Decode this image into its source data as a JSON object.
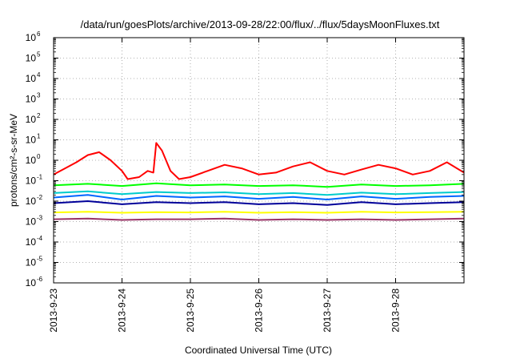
{
  "chart_data": {
    "type": "line",
    "title": "/data/run/goesPlots/archive/2013-09-28/22:00/flux/../flux/5daysMoonFluxes.txt",
    "xlabel": "Coordinated Universal Time (UTC)",
    "ylabel": "protons/cm²-s-sr-MeV",
    "y_scale": "log",
    "ylim_exponents": [
      -6,
      6
    ],
    "y_ticks": [
      {
        "base": "10",
        "exp": "-6"
      },
      {
        "base": "10",
        "exp": "-5"
      },
      {
        "base": "10",
        "exp": "-4"
      },
      {
        "base": "10",
        "exp": "-3"
      },
      {
        "base": "10",
        "exp": "-2"
      },
      {
        "base": "10",
        "exp": "-1"
      },
      {
        "base": "10",
        "exp": "0"
      },
      {
        "base": "10",
        "exp": "1"
      },
      {
        "base": "10",
        "exp": "2"
      },
      {
        "base": "10",
        "exp": "3"
      },
      {
        "base": "10",
        "exp": "4"
      },
      {
        "base": "10",
        "exp": "5"
      },
      {
        "base": "10",
        "exp": "6"
      }
    ],
    "xlim": [
      "2013-09-23T00:00",
      "2013-09-29T00:00"
    ],
    "x_ticks": [
      "2013-9-23",
      "2013-9-24",
      "2013-9-25",
      "2013-9-26",
      "2013-9-27",
      "2013-9-28"
    ],
    "grid": true,
    "legend": "none",
    "series": [
      {
        "color": "#ff0000",
        "time": [
          "2013-09-23T00:00",
          "2013-09-23T04:00",
          "2013-09-23T08:00",
          "2013-09-23T12:00",
          "2013-09-23T16:00",
          "2013-09-23T20:00",
          "2013-09-24T00:00",
          "2013-09-24T02:00",
          "2013-09-24T06:00",
          "2013-09-24T09:00",
          "2013-09-24T11:00",
          "2013-09-24T12:00",
          "2013-09-24T14:00",
          "2013-09-24T17:00",
          "2013-09-24T20:00",
          "2013-09-25T00:00",
          "2013-09-25T06:00",
          "2013-09-25T12:00",
          "2013-09-25T18:00",
          "2013-09-26T00:00",
          "2013-09-26T06:00",
          "2013-09-26T12:00",
          "2013-09-26T18:00",
          "2013-09-27T00:00",
          "2013-09-27T06:00",
          "2013-09-27T12:00",
          "2013-09-27T18:00",
          "2013-09-28T00:00",
          "2013-09-28T06:00",
          "2013-09-28T12:00",
          "2013-09-28T18:00",
          "2013-09-29T00:00"
        ],
        "y": [
          0.2,
          0.4,
          0.8,
          1.8,
          2.5,
          1.0,
          0.3,
          0.12,
          0.15,
          0.3,
          0.25,
          7,
          3,
          0.3,
          0.12,
          0.15,
          0.3,
          0.6,
          0.4,
          0.2,
          0.25,
          0.5,
          0.8,
          0.3,
          0.2,
          0.35,
          0.6,
          0.4,
          0.2,
          0.3,
          0.8,
          0.25
        ]
      },
      {
        "color": "#00ff00",
        "time": [
          "2013-09-23T00:00",
          "2013-09-23T12:00",
          "2013-09-24T00:00",
          "2013-09-24T12:00",
          "2013-09-25T00:00",
          "2013-09-25T12:00",
          "2013-09-26T00:00",
          "2013-09-26T12:00",
          "2013-09-27T00:00",
          "2013-09-27T12:00",
          "2013-09-28T00:00",
          "2013-09-28T12:00",
          "2013-09-29T00:00"
        ],
        "y": [
          0.06,
          0.07,
          0.055,
          0.075,
          0.06,
          0.065,
          0.055,
          0.06,
          0.05,
          0.065,
          0.055,
          0.06,
          0.07
        ]
      },
      {
        "color": "#00cccc",
        "time": [
          "2013-09-23T00:00",
          "2013-09-23T12:00",
          "2013-09-24T00:00",
          "2013-09-24T12:00",
          "2013-09-25T00:00",
          "2013-09-25T12:00",
          "2013-09-26T00:00",
          "2013-09-26T12:00",
          "2013-09-27T00:00",
          "2013-09-27T12:00",
          "2013-09-28T00:00",
          "2013-09-28T12:00",
          "2013-09-29T00:00"
        ],
        "y": [
          0.025,
          0.03,
          0.022,
          0.028,
          0.025,
          0.027,
          0.022,
          0.025,
          0.02,
          0.026,
          0.022,
          0.025,
          0.028
        ]
      },
      {
        "color": "#0066ff",
        "time": [
          "2013-09-23T00:00",
          "2013-09-23T12:00",
          "2013-09-24T00:00",
          "2013-09-24T12:00",
          "2013-09-25T00:00",
          "2013-09-25T12:00",
          "2013-09-26T00:00",
          "2013-09-26T12:00",
          "2013-09-27T00:00",
          "2013-09-27T12:00",
          "2013-09-28T00:00",
          "2013-09-28T12:00",
          "2013-09-29T00:00"
        ],
        "y": [
          0.015,
          0.02,
          0.012,
          0.018,
          0.015,
          0.017,
          0.013,
          0.016,
          0.012,
          0.017,
          0.013,
          0.016,
          0.018
        ]
      },
      {
        "color": "#000099",
        "time": [
          "2013-09-23T00:00",
          "2013-09-23T12:00",
          "2013-09-24T00:00",
          "2013-09-24T12:00",
          "2013-09-25T00:00",
          "2013-09-25T12:00",
          "2013-09-26T00:00",
          "2013-09-26T12:00",
          "2013-09-27T00:00",
          "2013-09-27T12:00",
          "2013-09-28T00:00",
          "2013-09-28T12:00",
          "2013-09-29T00:00"
        ],
        "y": [
          0.008,
          0.01,
          0.007,
          0.009,
          0.008,
          0.009,
          0.007,
          0.008,
          0.0065,
          0.009,
          0.007,
          0.008,
          0.009
        ]
      },
      {
        "color": "#ffff00",
        "time": [
          "2013-09-23T00:00",
          "2013-09-23T12:00",
          "2013-09-24T00:00",
          "2013-09-24T12:00",
          "2013-09-25T00:00",
          "2013-09-25T12:00",
          "2013-09-26T00:00",
          "2013-09-26T12:00",
          "2013-09-27T00:00",
          "2013-09-27T12:00",
          "2013-09-28T00:00",
          "2013-09-28T12:00",
          "2013-09-29T00:00"
        ],
        "y": [
          0.0028,
          0.003,
          0.0027,
          0.0029,
          0.0028,
          0.003,
          0.0027,
          0.0029,
          0.0027,
          0.003,
          0.0028,
          0.0029,
          0.003
        ]
      },
      {
        "color": "#993366",
        "time": [
          "2013-09-23T00:00",
          "2013-09-23T12:00",
          "2013-09-24T00:00",
          "2013-09-24T12:00",
          "2013-09-25T00:00",
          "2013-09-25T12:00",
          "2013-09-26T00:00",
          "2013-09-26T12:00",
          "2013-09-27T00:00",
          "2013-09-27T12:00",
          "2013-09-28T00:00",
          "2013-09-28T12:00",
          "2013-09-29T00:00"
        ],
        "y": [
          0.0013,
          0.0014,
          0.0012,
          0.0013,
          0.0013,
          0.0014,
          0.0012,
          0.0013,
          0.0012,
          0.0013,
          0.0012,
          0.0013,
          0.0014
        ]
      }
    ]
  }
}
